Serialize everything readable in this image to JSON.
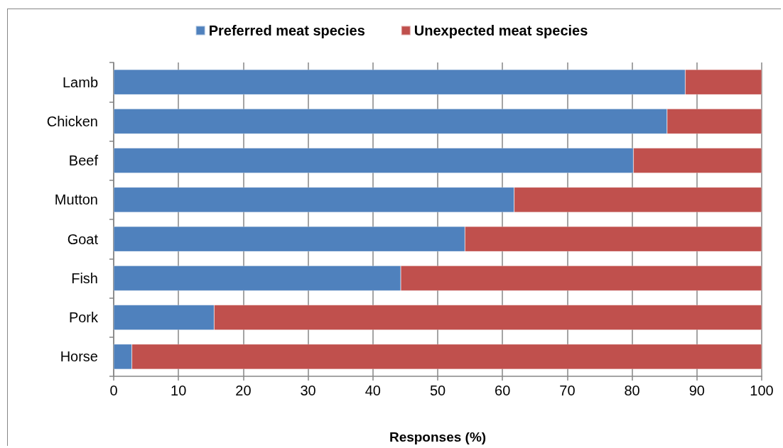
{
  "chart_data": {
    "type": "bar",
    "orientation": "horizontal",
    "stacked": true,
    "xlabel": "Responses (%)",
    "categories": [
      "Lamb",
      "Chicken",
      "Beef",
      "Mutton",
      "Goat",
      "Fish",
      "Pork",
      "Horse"
    ],
    "series": [
      {
        "name": "Preferred meat species",
        "color": "#4f81bd",
        "values": [
          88.2,
          85.4,
          80.2,
          61.8,
          54.2,
          44.3,
          15.5,
          2.8
        ]
      },
      {
        "name": "Unexpected meat species",
        "color": "#c0504d",
        "values": [
          11.8,
          14.6,
          19.8,
          38.2,
          45.8,
          55.7,
          84.5,
          97.2
        ]
      }
    ],
    "xlim": [
      0,
      100
    ],
    "xticks": [
      0,
      10,
      20,
      30,
      40,
      50,
      60,
      70,
      80,
      90,
      100
    ],
    "grid": "x",
    "legend": "top"
  }
}
